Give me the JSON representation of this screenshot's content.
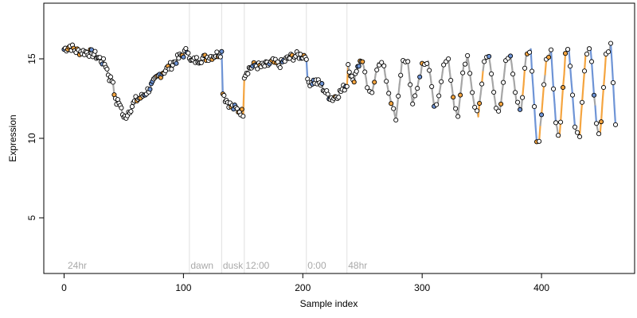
{
  "chart_data": {
    "type": "scatter",
    "title": "",
    "xlabel": "Sample index",
    "ylabel": "Expression",
    "xlim": [
      -17,
      478
    ],
    "ylim": [
      1.5,
      18.5
    ],
    "x_ticks": [
      0,
      100,
      200,
      300,
      400
    ],
    "y_ticks": [
      5,
      10,
      15
    ],
    "grid": false,
    "legend": "none",
    "line_color": "#a6a6a6",
    "point_fill_default": "#ffffff",
    "point_edge": "#000000",
    "up_color": "#f5a540",
    "down_color": "#6e94d6",
    "marker_color": "#e0e0e0",
    "annotations": [
      {
        "x": 3,
        "label": "24hr"
      },
      {
        "x": 106,
        "label": "dawn"
      },
      {
        "x": 133,
        "label": "dusk"
      },
      {
        "x": 152,
        "label": "12:00"
      },
      {
        "x": 204,
        "label": "0:00"
      },
      {
        "x": 238,
        "label": "48hr"
      }
    ],
    "segments_vertical_markers": [
      105,
      132,
      151,
      203,
      237
    ],
    "control_points": [
      [
        0,
        15.6
      ],
      [
        5,
        15.8
      ],
      [
        10,
        15.5
      ],
      [
        20,
        15.4
      ],
      [
        25,
        15.3
      ],
      [
        30,
        15.0
      ],
      [
        35,
        14.6
      ],
      [
        38,
        13.8
      ],
      [
        41,
        13.6
      ],
      [
        43,
        12.3
      ],
      [
        47,
        12.2
      ],
      [
        50,
        11.2
      ],
      [
        55,
        11.8
      ],
      [
        60,
        12.4
      ],
      [
        65,
        12.6
      ],
      [
        70,
        13.0
      ],
      [
        75,
        13.5
      ],
      [
        80,
        14.0
      ],
      [
        85,
        14.3
      ],
      [
        90,
        14.6
      ],
      [
        95,
        15.0
      ],
      [
        100,
        15.3
      ],
      [
        104,
        15.6
      ],
      [
        106,
        14.8
      ],
      [
        110,
        14.9
      ],
      [
        115,
        15.0
      ],
      [
        120,
        15.1
      ],
      [
        125,
        15.2
      ],
      [
        132,
        15.4
      ],
      [
        133,
        13.0
      ],
      [
        135,
        12.5
      ],
      [
        140,
        12.0
      ],
      [
        145,
        11.8
      ],
      [
        150,
        11.6
      ],
      [
        151,
        14.0
      ],
      [
        155,
        14.4
      ],
      [
        160,
        14.6
      ],
      [
        165,
        14.5
      ],
      [
        170,
        14.6
      ],
      [
        175,
        14.8
      ],
      [
        180,
        14.6
      ],
      [
        185,
        14.9
      ],
      [
        190,
        15.1
      ],
      [
        195,
        15.2
      ],
      [
        203,
        15.2
      ],
      [
        204,
        13.5
      ],
      [
        210,
        13.6
      ],
      [
        215,
        13.4
      ],
      [
        220,
        12.8
      ],
      [
        225,
        12.5
      ],
      [
        230,
        12.8
      ],
      [
        237,
        13.4
      ],
      [
        238,
        14.7
      ],
      [
        242,
        13.5
      ],
      [
        246,
        14.6
      ],
      [
        250,
        14.9
      ],
      [
        255,
        12.8
      ],
      [
        258,
        13.0
      ],
      [
        263,
        14.6
      ],
      [
        267,
        14.9
      ],
      [
        270,
        13.5
      ],
      [
        275,
        12.0
      ],
      [
        278,
        11.2
      ],
      [
        283,
        14.8
      ],
      [
        288,
        14.8
      ],
      [
        292,
        12.2
      ],
      [
        295,
        12.8
      ],
      [
        300,
        14.6
      ],
      [
        305,
        14.9
      ],
      [
        310,
        12.0
      ],
      [
        313,
        12.2
      ],
      [
        318,
        14.6
      ],
      [
        322,
        15.0
      ],
      [
        327,
        12.0
      ],
      [
        330,
        11.5
      ],
      [
        335,
        14.6
      ],
      [
        338,
        15.1
      ],
      [
        343,
        12.3
      ],
      [
        347,
        11.5
      ],
      [
        352,
        14.8
      ],
      [
        356,
        15.3
      ],
      [
        362,
        11.9
      ],
      [
        365,
        11.6
      ],
      [
        370,
        15.0
      ],
      [
        374,
        15.3
      ],
      [
        379,
        12.3
      ],
      [
        383,
        11.7
      ],
      [
        387,
        15.2
      ],
      [
        391,
        15.5
      ],
      [
        396,
        9.7
      ],
      [
        398,
        9.9
      ],
      [
        404,
        15.0
      ],
      [
        408,
        15.5
      ],
      [
        412,
        11.0
      ],
      [
        415,
        10.0
      ],
      [
        420,
        15.2
      ],
      [
        423,
        15.6
      ],
      [
        428,
        10.6
      ],
      [
        432,
        10.2
      ],
      [
        437,
        15.3
      ],
      [
        441,
        15.8
      ],
      [
        446,
        10.9
      ],
      [
        449,
        10.1
      ],
      [
        454,
        15.2
      ],
      [
        458,
        15.9
      ],
      [
        462,
        11.0
      ],
      [
        465,
        10.2
      ],
      [
        469,
        15.3
      ],
      [
        472,
        15.8
      ]
    ]
  }
}
